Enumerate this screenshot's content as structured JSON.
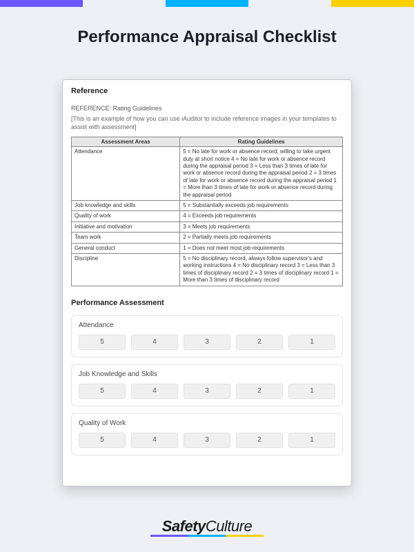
{
  "topbar_colors": [
    "#6b57ff",
    "#eef0f5",
    "#00b2ff",
    "#eef0f5",
    "#ffd100"
  ],
  "page_title": "Performance Appraisal Checklist",
  "reference": {
    "heading": "Reference",
    "subtitle": "REFERENCE: Rating Guidelines",
    "description": "[This is an example of how you can use iAuditor to include reference images in your templates to assist with assessment]",
    "columns": [
      "Assessment Areas",
      "Rating Guidelines"
    ],
    "rows": [
      {
        "area": "Attendance",
        "guidelines": "5 = No late for work or absence record, willing to take urgent duty at short notice\n4 = No late for work or absence record during the appraisal period\n3 = Less than 3 times of late for work or absence record during the appraisal period\n2 = 3 times of late for work or absence record during the appraisal period\n1 = More than 3 times of late for work or absence record during the appraisal period"
      },
      {
        "area": "Job knowledge and skills",
        "guidelines": "5 = Substantially exceeds job requirements"
      },
      {
        "area": "Quality of work",
        "guidelines": "4 = Exceeds job requirements"
      },
      {
        "area": "Initiative and motivation",
        "guidelines": "3 = Meets job requirements"
      },
      {
        "area": "Team work",
        "guidelines": "2 = Partially meets job requirements"
      },
      {
        "area": "General conduct",
        "guidelines": "1 = Does not meet most job requirements"
      },
      {
        "area": "Discipline",
        "guidelines": "5 = No disciplinary record, always follow supervisor's and working instructions\n4 = No disciplinary record\n3 = Less than 3 times of disciplinary record\n2 = 3 times of disciplinary record\n1 = More than 3 times of disciplinary record"
      }
    ]
  },
  "assessment": {
    "heading": "Performance Assessment",
    "items": [
      {
        "label": "Attendance",
        "options": [
          "5",
          "4",
          "3",
          "2",
          "1"
        ]
      },
      {
        "label": "Job Knowledge and Skills",
        "options": [
          "5",
          "4",
          "3",
          "2",
          "1"
        ]
      },
      {
        "label": "Quality of Work",
        "options": [
          "5",
          "4",
          "3",
          "2",
          "1"
        ]
      }
    ]
  },
  "footer": {
    "brand_bold": "Safety",
    "brand_thin": "Culture",
    "underline_colors": [
      "#6b57ff",
      "#00b2ff",
      "#ffd100"
    ]
  },
  "colors": {
    "page_bg": "#eef0f5",
    "card_bg": "#ffffff",
    "card_border": "#c7c7c7",
    "table_header_bg": "#e7e7e7",
    "table_border": "#888888",
    "rating_btn_bg": "#f0f0f0",
    "rating_btn_border": "#e2e2e2",
    "text_primary": "#1c1f2a",
    "text_body": "#444444"
  }
}
